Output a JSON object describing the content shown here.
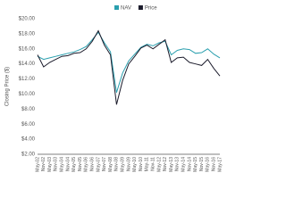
{
  "chart_data": {
    "type": "line",
    "y_label": "Closing Price ($)",
    "categories": [
      "May-02",
      "Nov-02",
      "May-03",
      "Nov-03",
      "May-04",
      "Nov-04",
      "May-05",
      "Nov-05",
      "May-06",
      "Nov-06",
      "May-07",
      "Nov-07",
      "May-08",
      "Nov-08",
      "May-09",
      "Nov-09",
      "May-10",
      "Nov-10",
      "May-11",
      "Nov-11",
      "May-12",
      "Nov-12",
      "May-13",
      "Nov-13",
      "May-14",
      "Nov-14",
      "May-15",
      "Nov-15",
      "May-16",
      "Nov-16",
      "May-17"
    ],
    "series": [
      {
        "name": "NAV",
        "color": "#2a9fae",
        "values": [
          15.0,
          14.6,
          14.8,
          15.0,
          15.2,
          15.4,
          15.6,
          15.9,
          16.3,
          17.2,
          18.2,
          16.8,
          15.6,
          10.2,
          12.8,
          14.4,
          15.3,
          16.2,
          16.6,
          16.4,
          16.8,
          17.0,
          15.2,
          15.8,
          16.0,
          15.9,
          15.4,
          15.5,
          16.0,
          15.3,
          14.8
        ]
      },
      {
        "name": "Price",
        "color": "#1c1c2c",
        "values": [
          15.2,
          13.6,
          14.2,
          14.6,
          15.0,
          15.1,
          15.4,
          15.5,
          16.0,
          17.0,
          18.4,
          16.5,
          15.2,
          8.6,
          11.8,
          14.0,
          15.0,
          16.1,
          16.5,
          16.0,
          16.6,
          17.2,
          14.2,
          14.8,
          14.9,
          14.2,
          14.0,
          13.8,
          14.6,
          13.4,
          12.4
        ]
      }
    ],
    "ylim": [
      2,
      20
    ],
    "yticks": [
      {
        "value": 2,
        "label": "$2.00"
      },
      {
        "value": 4,
        "label": "$4.00"
      },
      {
        "value": 6,
        "label": "$6.00"
      },
      {
        "value": 8,
        "label": "$8.00"
      },
      {
        "value": 10,
        "label": "$10.00"
      },
      {
        "value": 12,
        "label": "$12.00"
      },
      {
        "value": 14,
        "label": "$14.00"
      },
      {
        "value": 16,
        "label": "$16.00"
      },
      {
        "value": 18,
        "label": "$18.00"
      },
      {
        "value": 20,
        "label": "$20.00"
      }
    ],
    "grid": false
  }
}
